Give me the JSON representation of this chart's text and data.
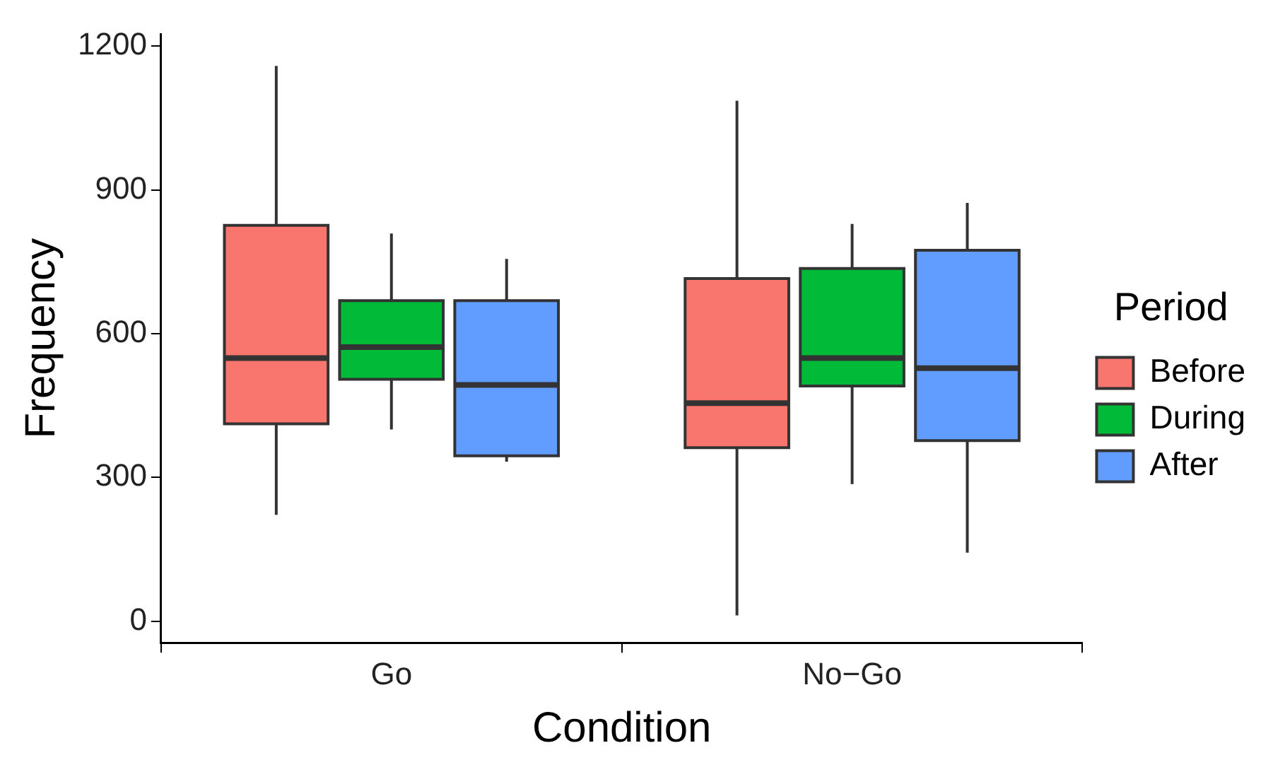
{
  "chart_data": {
    "type": "box",
    "xlabel": "Condition",
    "ylabel": "Frequency",
    "legend_title": "Period",
    "legend": "right",
    "grid": false,
    "categories": [
      "Go",
      "No−Go"
    ],
    "ylim": [
      -45,
      1225
    ],
    "yticks": [
      0,
      300,
      600,
      900,
      1200
    ],
    "series": [
      {
        "name": "Before",
        "color": "#f8766d",
        "boxes": [
          {
            "low": 222,
            "q1": 412,
            "median": 549,
            "q3": 826,
            "high": 1159
          },
          {
            "low": 12,
            "q1": 362,
            "median": 455,
            "q3": 715,
            "high": 1086
          }
        ]
      },
      {
        "name": "During",
        "color": "#00ba38",
        "boxes": [
          {
            "low": 400,
            "q1": 505,
            "median": 572,
            "q3": 669,
            "high": 809
          },
          {
            "low": 286,
            "q1": 491,
            "median": 549,
            "q3": 736,
            "high": 829
          }
        ]
      },
      {
        "name": "After",
        "color": "#619cff",
        "boxes": [
          {
            "low": 333,
            "q1": 345,
            "median": 493,
            "q3": 669,
            "high": 756
          },
          {
            "low": 143,
            "q1": 377,
            "median": 528,
            "q3": 774,
            "high": 873
          }
        ]
      }
    ]
  }
}
